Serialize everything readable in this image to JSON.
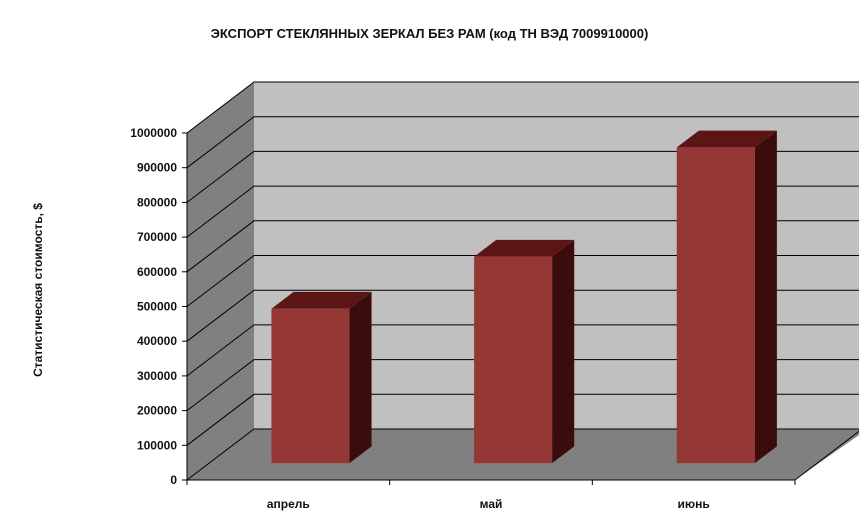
{
  "chart_data": {
    "type": "bar",
    "title": "ЭКСПОРТ СТЕКЛЯННЫХ ЗЕРКАЛ БЕЗ РАМ (код ТН ВЭД 7009910000)",
    "xlabel": "",
    "ylabel": "Статистическая стоимость, $",
    "categories": [
      "апрель",
      "май",
      "июнь"
    ],
    "values": [
      445000,
      595000,
      910000
    ],
    "ylim": [
      0,
      1000000
    ],
    "yticks": [
      "0",
      "100000",
      "200000",
      "300000",
      "400000",
      "500000",
      "600000",
      "700000",
      "800000",
      "900000",
      "1000000"
    ],
    "grid": true,
    "legend": "none",
    "colors": {
      "bar_front": "#953735",
      "bar_side": "#3a0c0b",
      "bar_top": "#5a1514",
      "back_wall": "#c0c0c0",
      "side_wall": "#808080",
      "floor": "#808080",
      "grid": "#000000"
    }
  }
}
